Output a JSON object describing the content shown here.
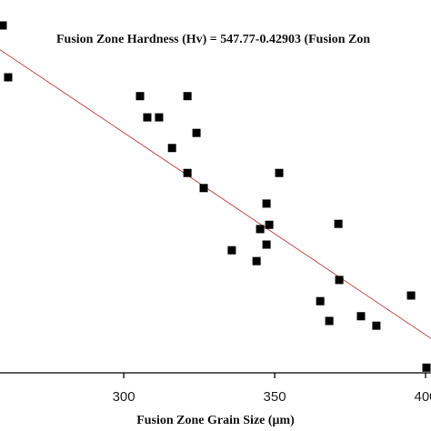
{
  "chart_data": {
    "type": "scatter",
    "annotation": "Fusion Zone Hardness (Hv) = 547.77-0.42903 (Fusion Zon",
    "x_label": "Fusion Zone Grain Size (μm)",
    "x": [
      259.9,
      261.7,
      305.4,
      321.1,
      307.8,
      311.7,
      324.1,
      316.0,
      321.1,
      351.5,
      326.5,
      347.3,
      345.2,
      348.2,
      371.1,
      335.8,
      347.3,
      344.0,
      371.4,
      365.1,
      395.2,
      368.1,
      378.6,
      383.7,
      400.3
    ],
    "values": [
      441.8,
      430.8,
      426.8,
      426.8,
      422.3,
      422.3,
      419.0,
      415.8,
      410.5,
      410.5,
      407.3,
      404.0,
      398.6,
      399.5,
      399.7,
      394.1,
      395.3,
      391.8,
      387.8,
      383.3,
      384.5,
      379.1,
      380.1,
      378.1,
      369.2
    ],
    "color": "#000000",
    "fit": {
      "intercept": 547.77,
      "slope": -0.42903,
      "color": "#c0504d"
    },
    "xlim": [
      259,
      401.8
    ],
    "ylim": [
      368.1,
      447.2
    ],
    "xticks": [
      300,
      350,
      400
    ],
    "grid": false
  }
}
